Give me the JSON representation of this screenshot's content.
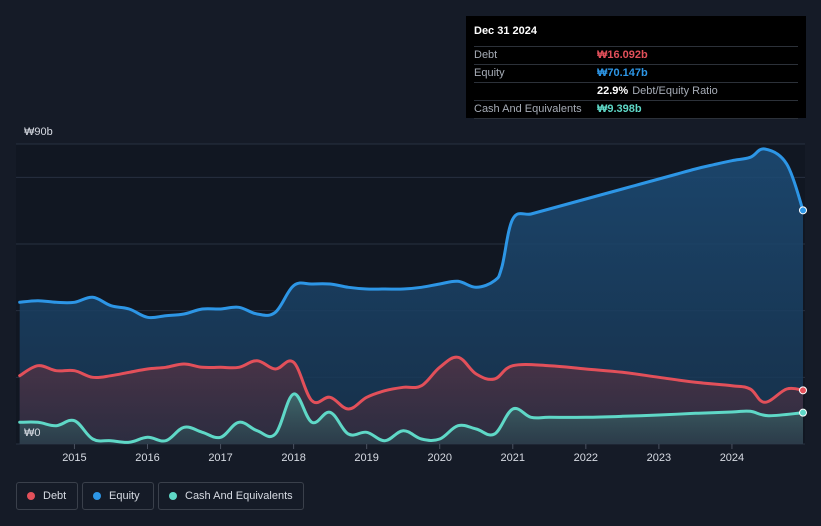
{
  "tooltip": {
    "date": "Dec 31 2024",
    "debt_label": "Debt",
    "debt_value": "₩16.092b",
    "equity_label": "Equity",
    "equity_value": "₩70.147b",
    "ratio_value": "22.9%",
    "ratio_label": "Debt/Equity Ratio",
    "cash_label": "Cash And Equivalents",
    "cash_value": "₩9.398b"
  },
  "legend": {
    "debt": "Debt",
    "equity": "Equity",
    "cash": "Cash And Equivalents"
  },
  "colors": {
    "debt": "#e2505a",
    "equity": "#2d96e6",
    "cash": "#5fd8c7",
    "background": "#151b27"
  },
  "chart_data": {
    "type": "line",
    "ylim": [
      0,
      90
    ],
    "y_ticks": [
      0,
      90
    ],
    "y_tick_labels": [
      "₩0",
      "₩90b"
    ],
    "x_ticks": [
      2015,
      2016,
      2017,
      2018,
      2019,
      2020,
      2021,
      2022,
      2023,
      2024
    ],
    "xlim": [
      2014.2,
      2025.0
    ],
    "grid": true,
    "legend_placement": "bottom-left",
    "series": [
      {
        "name": "Equity",
        "x": [
          2014.25,
          2014.5,
          2014.75,
          2015.0,
          2015.25,
          2015.5,
          2015.75,
          2016.0,
          2016.25,
          2016.5,
          2016.75,
          2017.0,
          2017.25,
          2017.5,
          2017.75,
          2018.0,
          2018.25,
          2018.5,
          2018.75,
          2019.0,
          2019.25,
          2019.5,
          2019.75,
          2020.0,
          2020.25,
          2020.5,
          2020.75,
          2020.85,
          2021.0,
          2021.25,
          2021.5,
          2021.75,
          2022.0,
          2022.25,
          2022.5,
          2022.75,
          2023.0,
          2023.25,
          2023.5,
          2023.75,
          2024.0,
          2024.25,
          2024.45,
          2024.75,
          2025.0
        ],
        "values": [
          42.5,
          43.0,
          42.5,
          42.5,
          44.0,
          41.5,
          40.5,
          38.0,
          38.5,
          39.0,
          40.5,
          40.5,
          41.0,
          39.0,
          39.5,
          47.5,
          48.0,
          48.0,
          47.0,
          46.5,
          46.5,
          46.5,
          47.0,
          48.0,
          48.8,
          47.0,
          49.0,
          53.0,
          67.5,
          69.0,
          70.5,
          72.0,
          73.5,
          75.0,
          76.5,
          78.0,
          79.5,
          81.0,
          82.5,
          83.8,
          85.0,
          86.0,
          88.5,
          84.0,
          70.1
        ]
      },
      {
        "name": "Debt",
        "x": [
          2014.25,
          2014.5,
          2014.75,
          2015.0,
          2015.25,
          2015.5,
          2015.75,
          2016.0,
          2016.25,
          2016.5,
          2016.75,
          2017.0,
          2017.25,
          2017.5,
          2017.75,
          2018.0,
          2018.25,
          2018.5,
          2018.75,
          2019.0,
          2019.25,
          2019.5,
          2019.75,
          2020.0,
          2020.25,
          2020.5,
          2020.75,
          2021.0,
          2021.5,
          2022.0,
          2022.5,
          2023.0,
          2023.5,
          2024.0,
          2024.25,
          2024.45,
          2024.75,
          2025.0
        ],
        "values": [
          20.5,
          23.5,
          22.0,
          22.0,
          20.0,
          20.5,
          21.5,
          22.5,
          23.0,
          24.0,
          23.0,
          23.0,
          23.0,
          25.0,
          22.5,
          24.5,
          13.0,
          14.0,
          10.5,
          14.0,
          16.0,
          17.0,
          17.5,
          23.0,
          26.0,
          21.0,
          19.5,
          23.5,
          23.5,
          22.5,
          21.5,
          20.0,
          18.5,
          17.5,
          16.5,
          12.5,
          16.5,
          16.1
        ]
      },
      {
        "name": "Cash And Equivalents",
        "x": [
          2014.25,
          2014.5,
          2014.75,
          2015.0,
          2015.25,
          2015.5,
          2015.75,
          2016.0,
          2016.25,
          2016.5,
          2016.75,
          2017.0,
          2017.25,
          2017.5,
          2017.75,
          2018.0,
          2018.25,
          2018.5,
          2018.75,
          2019.0,
          2019.25,
          2019.5,
          2019.75,
          2020.0,
          2020.25,
          2020.5,
          2020.75,
          2021.0,
          2021.25,
          2021.5,
          2022.0,
          2022.5,
          2023.0,
          2023.5,
          2024.0,
          2024.25,
          2024.5,
          2025.0
        ],
        "values": [
          6.5,
          6.5,
          5.5,
          7.0,
          1.5,
          1.0,
          0.5,
          2.0,
          1.0,
          5.0,
          3.5,
          2.0,
          6.5,
          4.0,
          3.0,
          15.0,
          6.5,
          9.5,
          3.0,
          3.5,
          1.0,
          4.0,
          1.5,
          1.5,
          5.5,
          4.5,
          3.0,
          10.5,
          8.0,
          8.0,
          8.0,
          8.3,
          8.7,
          9.2,
          9.6,
          9.8,
          8.5,
          9.4
        ]
      }
    ]
  }
}
